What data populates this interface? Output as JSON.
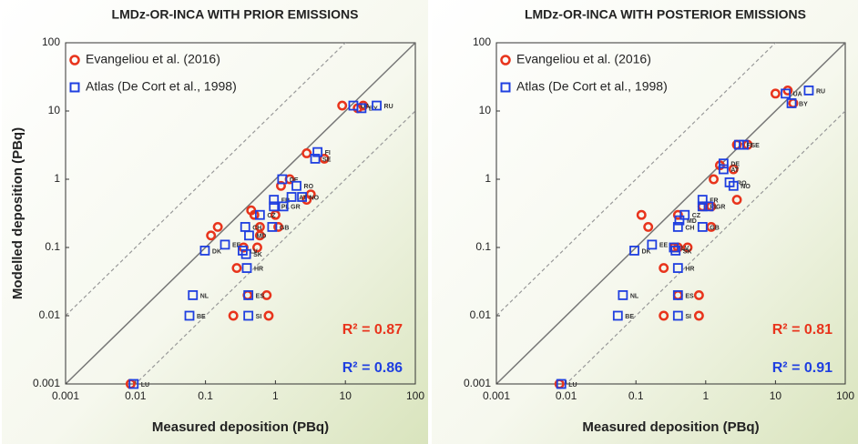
{
  "chart_data": [
    {
      "type": "scatter",
      "title": "LMDz-OR-INCA WITH PRIOR EMISSIONS",
      "x_label": "Measured deposition (PBq)",
      "y_label": "Modelled deposition (PBq)",
      "xscale": "log",
      "yscale": "log",
      "xlim": [
        0.001,
        100
      ],
      "ylim": [
        0.001,
        100
      ],
      "xticks": [
        0.001,
        0.01,
        0.1,
        1,
        10,
        100
      ],
      "yticks": [
        0.001,
        0.01,
        0.1,
        1,
        10,
        100
      ],
      "annotations": [
        {
          "text": "R² = 0.87",
          "color": "#e8341c"
        },
        {
          "text": "R² = 0.86",
          "color": "#1f3fe0"
        }
      ],
      "series": [
        {
          "name": "Evangeliou et al. (2016)",
          "color": "#e8341c",
          "marker": "circle",
          "x": [
            0.0085,
            0.25,
            0.8,
            0.4,
            0.75,
            0.28,
            0.12,
            0.15,
            0.35,
            0.55,
            0.6,
            0.45,
            0.5,
            0.6,
            1.1,
            1.2,
            1.6,
            2.8,
            3.2,
            2.8,
            5,
            9,
            15,
            18,
            1.0
          ],
          "values": [
            0.001,
            0.01,
            0.01,
            0.02,
            0.02,
            0.05,
            0.15,
            0.2,
            0.1,
            0.1,
            0.15,
            0.35,
            0.3,
            0.2,
            0.2,
            0.8,
            1.0,
            0.5,
            0.6,
            2.4,
            2,
            12,
            11,
            12,
            0.3
          ]
        },
        {
          "name": "Atlas (De Cort et al., 1998)",
          "color": "#1f3fe0",
          "marker": "square",
          "labels": [
            "LU",
            "BE",
            "NL",
            "SI",
            "ES",
            "HR",
            "DK",
            "EE",
            "LV",
            "SK",
            "CH",
            "MD",
            "GB",
            "CZ",
            "PL",
            "FR",
            "GR",
            "DE",
            "RO",
            "NO",
            "AT",
            "SE",
            "FI",
            "UA",
            "BY",
            "RU"
          ],
          "x": [
            0.0094,
            0.059,
            0.066,
            0.41,
            0.41,
            0.39,
            0.098,
            0.19,
            0.34,
            0.38,
            0.37,
            0.42,
            0.9,
            0.6,
            0.95,
            0.95,
            1.3,
            1.25,
            2.0,
            2.4,
            1.7,
            3.7,
            4.0,
            13,
            17,
            28
          ],
          "values": [
            0.001,
            0.01,
            0.02,
            0.01,
            0.02,
            0.05,
            0.09,
            0.11,
            0.09,
            0.08,
            0.2,
            0.15,
            0.2,
            0.3,
            0.4,
            0.5,
            0.4,
            1.0,
            0.8,
            0.55,
            0.55,
            2.0,
            2.5,
            12,
            11,
            12
          ]
        }
      ]
    },
    {
      "type": "scatter",
      "title": "LMDz-OR-INCA WITH POSTERIOR EMISSIONS",
      "x_label": "Measured deposition (PBq)",
      "xscale": "log",
      "yscale": "log",
      "xlim": [
        0.001,
        100
      ],
      "ylim": [
        0.001,
        100
      ],
      "xticks": [
        0.001,
        0.01,
        0.1,
        1,
        10,
        100
      ],
      "yticks": [
        0.001,
        0.01,
        0.1,
        1,
        10,
        100
      ],
      "annotations": [
        {
          "text": "R² = 0.81",
          "color": "#e8341c"
        },
        {
          "text": "R² = 0.91",
          "color": "#1f3fe0"
        }
      ],
      "series": [
        {
          "name": "Evangeliou et al. (2016)",
          "color": "#e8341c",
          "marker": "circle",
          "x": [
            0.008,
            0.25,
            0.8,
            0.4,
            0.8,
            0.25,
            0.12,
            0.15,
            0.35,
            0.4,
            0.55,
            1.2,
            0.9,
            1.2,
            2.8,
            1.3,
            1.6,
            2.5,
            2.8,
            4,
            10,
            15,
            18,
            0.4
          ],
          "values": [
            0.001,
            0.01,
            0.01,
            0.02,
            0.02,
            0.05,
            0.3,
            0.2,
            0.1,
            0.1,
            0.1,
            0.2,
            0.4,
            0.4,
            0.5,
            1.0,
            1.6,
            1.4,
            3.2,
            3.2,
            18,
            20,
            13,
            0.3
          ]
        },
        {
          "name": "Atlas (De Cort et al., 1998)",
          "color": "#1f3fe0",
          "marker": "square",
          "labels": [
            "LU",
            "BE",
            "NL",
            "SI",
            "ES",
            "HR",
            "DK",
            "EE",
            "LV",
            "SK",
            "CH",
            "MD",
            "GB",
            "CZ",
            "PL",
            "FR",
            "GR",
            "DE",
            "RO",
            "NO",
            "AT",
            "SE",
            "FI",
            "UA",
            "BY",
            "RU"
          ],
          "x": [
            0.0085,
            0.055,
            0.065,
            0.4,
            0.4,
            0.4,
            0.095,
            0.17,
            0.35,
            0.37,
            0.4,
            0.42,
            0.9,
            0.5,
            0.9,
            0.9,
            1.1,
            1.8,
            2.2,
            2.5,
            1.8,
            3.5,
            3.0,
            14,
            17,
            30
          ],
          "values": [
            0.001,
            0.01,
            0.02,
            0.01,
            0.02,
            0.05,
            0.09,
            0.11,
            0.1,
            0.09,
            0.2,
            0.25,
            0.2,
            0.3,
            0.4,
            0.5,
            0.4,
            1.7,
            0.9,
            0.8,
            1.4,
            3.2,
            3.2,
            18,
            13,
            20
          ]
        }
      ]
    }
  ]
}
